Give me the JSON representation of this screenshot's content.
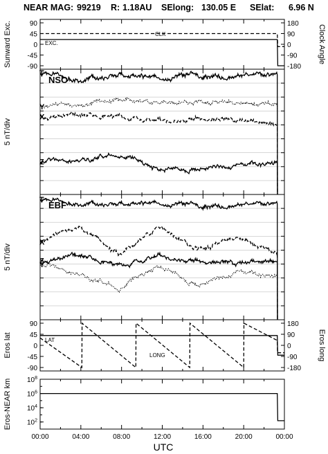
{
  "header": {
    "instrument": "NEAR MAG:",
    "date_code": "99219",
    "r_label": "R:",
    "r_value": "1.18AU",
    "selong_label": "SElong:",
    "selong_value": "130.05 E",
    "selat_label": "SElat:",
    "selat_value": "6.96 N"
  },
  "x_axis": {
    "label": "UTC",
    "ticks": [
      "00:00",
      "04:00",
      "08:00",
      "12:00",
      "16:00",
      "20:00",
      "00:00"
    ],
    "range_hours": [
      0,
      24
    ]
  },
  "chart_data": [
    {
      "type": "line",
      "panel": "excitation",
      "ylabel_left": "Sunward Exc.",
      "ylabel_right": "Clock Angle",
      "ylim_left": [
        -90,
        90
      ],
      "ylim_right": [
        -180,
        180
      ],
      "yticks_left": [
        "90",
        "45",
        "0",
        "-45",
        "-90"
      ],
      "yticks_right": [
        "180",
        "90",
        "0",
        "-90",
        "-180"
      ],
      "annotations": [
        "CLK",
        "EXC."
      ],
      "series": [
        {
          "name": "CLK",
          "style": "dashed",
          "axis": "right",
          "x": [
            0,
            23.3,
            23.35,
            24
          ],
          "y": [
            90,
            90,
            -20,
            -20
          ]
        },
        {
          "name": "EXC.",
          "style": "solid",
          "axis": "left",
          "x": [
            0,
            23.3,
            23.35,
            24
          ],
          "y": [
            20,
            20,
            -90,
            -90
          ]
        }
      ]
    },
    {
      "type": "line",
      "panel": "NSO",
      "title": "NSO",
      "ylabel": "5 nT/div",
      "grid": true,
      "series_labels": [
        "T",
        "Y",
        "X",
        "Z"
      ],
      "series": [
        {
          "name": "T",
          "style": "solid",
          "offset": 0.03,
          "amp": 0.035,
          "trend": [
            0,
            0.05,
            0.02,
            0.04,
            0.02,
            0.03,
            0.01
          ]
        },
        {
          "name": "Y",
          "style": "dotted",
          "offset": 0.3,
          "amp": 0.03,
          "trend": [
            0,
            -0.02,
            -0.04,
            -0.03,
            -0.03,
            -0.02,
            -0.01
          ]
        },
        {
          "name": "X",
          "style": "dashed",
          "offset": 0.38,
          "amp": 0.03,
          "trend": [
            0,
            -0.02,
            0.01,
            0.03,
            0.02,
            0.04,
            0.07
          ]
        },
        {
          "name": "Z",
          "style": "solid",
          "offset": 0.74,
          "amp": 0.03,
          "trend": [
            0,
            -0.01,
            -0.05,
            0.05,
            0.06,
            0.02,
            0.01
          ]
        }
      ]
    },
    {
      "type": "line",
      "panel": "EBF",
      "title": "EBF",
      "ylabel": "5 nT/div",
      "grid": true,
      "series_labels": [
        "T",
        "X",
        "Z",
        "Y"
      ],
      "series": [
        {
          "name": "T",
          "style": "solid",
          "offset": 0.04,
          "amp": 0.03,
          "trend": [
            0,
            0.03,
            0.04,
            0.03,
            0.05,
            0.05,
            0.03
          ]
        },
        {
          "name": "X",
          "style": "dashed",
          "offset": 0.38,
          "amp": 0.03,
          "trend": [
            0,
            -0.13,
            0.12,
            -0.12,
            0.07,
            -0.03,
            0.1
          ]
        },
        {
          "name": "Z",
          "style": "solid",
          "offset": 0.53,
          "amp": 0.03,
          "trend": [
            0,
            -0.05,
            0.05,
            -0.04,
            0.01,
            0.03,
            0.01
          ]
        },
        {
          "name": "Y",
          "style": "dotted",
          "offset": 0.56,
          "amp": 0.03,
          "trend": [
            0,
            0.08,
            0.2,
            0.0,
            0.17,
            0.05,
            0.1
          ]
        }
      ]
    },
    {
      "type": "line",
      "panel": "eros-position",
      "ylabel_left": "Eros lat",
      "ylabel_right": "Eros long",
      "ylim_left": [
        -90,
        90
      ],
      "ylim_right": [
        -180,
        180
      ],
      "yticks_left": [
        "90",
        "45",
        "0",
        "-45",
        "-90"
      ],
      "yticks_right": [
        "180",
        "90",
        "0",
        "-90",
        "-180"
      ],
      "annotations": [
        "LAT",
        "LONG"
      ],
      "series": [
        {
          "name": "LAT",
          "style": "solid",
          "axis": "left",
          "x": [
            0,
            23.3,
            23.35,
            24
          ],
          "y": [
            40,
            40,
            -40,
            -40
          ]
        },
        {
          "name": "LONG",
          "style": "dashed",
          "axis": "right",
          "x": [
            0,
            4.1,
            4.12,
            9.4,
            9.42,
            14.7,
            14.72,
            20.0,
            20.02,
            23.3,
            23.32,
            24
          ],
          "y": [
            60,
            -180,
            180,
            -180,
            180,
            -180,
            180,
            -180,
            180,
            40,
            -60,
            -60
          ]
        }
      ]
    },
    {
      "type": "line",
      "panel": "eros-near-distance",
      "ylabel": "Eros-NEAR km",
      "yscale": "log",
      "ylim": [
        10,
        100000000
      ],
      "yticks": [
        "10^8",
        "10^6",
        "10^4",
        "10^2"
      ],
      "series": [
        {
          "name": "distance",
          "style": "solid",
          "x": [
            0,
            23.3,
            23.35,
            24
          ],
          "y": [
            1000000,
            1000000,
            150,
            150
          ]
        }
      ]
    }
  ]
}
